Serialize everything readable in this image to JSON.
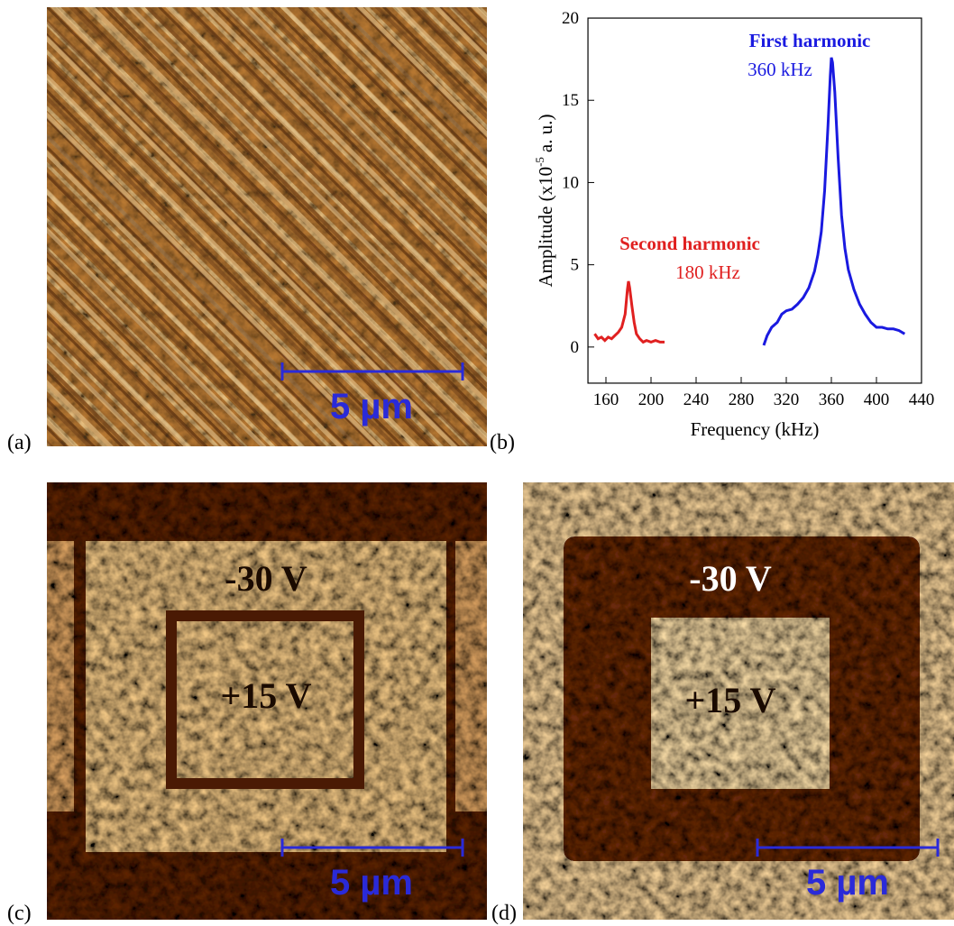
{
  "panels": {
    "a": {
      "label": "(a)",
      "scale_bar": "5 µm"
    },
    "b": {
      "label": "(b)"
    },
    "c": {
      "label": "(c)",
      "scale_bar": "5 µm",
      "outer_voltage": "-30 V",
      "inner_voltage": "+15 V"
    },
    "d": {
      "label": "(d)",
      "scale_bar": "5 µm",
      "outer_voltage": "-30 V",
      "inner_voltage": "+15 V"
    }
  },
  "chart_data": {
    "type": "line",
    "xlabel": "Frequency (kHz)",
    "ylabel": {
      "main": "Amplitude (x10",
      "sup": "-5",
      "unit": "a. u.)"
    },
    "xlim": [
      144,
      440
    ],
    "ylim": [
      -2.2,
      20
    ],
    "xticks": [
      160,
      200,
      240,
      280,
      320,
      360,
      400,
      440
    ],
    "yticks": [
      0,
      5,
      10,
      15,
      20
    ],
    "series": [
      {
        "name": "Second harmonic",
        "peak_label": "180 kHz",
        "color": "#e02020",
        "x": [
          150,
          153,
          156,
          159,
          162,
          165,
          168,
          171,
          174,
          177,
          179,
          180,
          181,
          183,
          185,
          187,
          190,
          193,
          196,
          200,
          204,
          208,
          212
        ],
        "values": [
          0.8,
          0.5,
          0.6,
          0.4,
          0.6,
          0.5,
          0.7,
          0.9,
          1.2,
          2.0,
          3.5,
          4.0,
          3.6,
          2.5,
          1.5,
          0.8,
          0.5,
          0.3,
          0.4,
          0.3,
          0.4,
          0.3,
          0.3
        ]
      },
      {
        "name": "First harmonic",
        "peak_label": "360 kHz",
        "color": "#1a1ae0",
        "x": [
          300,
          303,
          307,
          312,
          316,
          320,
          325,
          330,
          335,
          340,
          345,
          348,
          351,
          354,
          357,
          359,
          360,
          361,
          363,
          366,
          369,
          372,
          375,
          380,
          385,
          390,
          395,
          400,
          405,
          410,
          415,
          420,
          425
        ],
        "values": [
          0.1,
          0.7,
          1.2,
          1.5,
          2.0,
          2.2,
          2.3,
          2.6,
          3.0,
          3.6,
          4.6,
          5.6,
          7.0,
          9.5,
          13.5,
          16.5,
          17.6,
          17.3,
          15.5,
          11.5,
          8.0,
          6.0,
          4.7,
          3.5,
          2.6,
          2.0,
          1.5,
          1.2,
          1.2,
          1.1,
          1.1,
          1.0,
          0.8
        ]
      }
    ]
  }
}
